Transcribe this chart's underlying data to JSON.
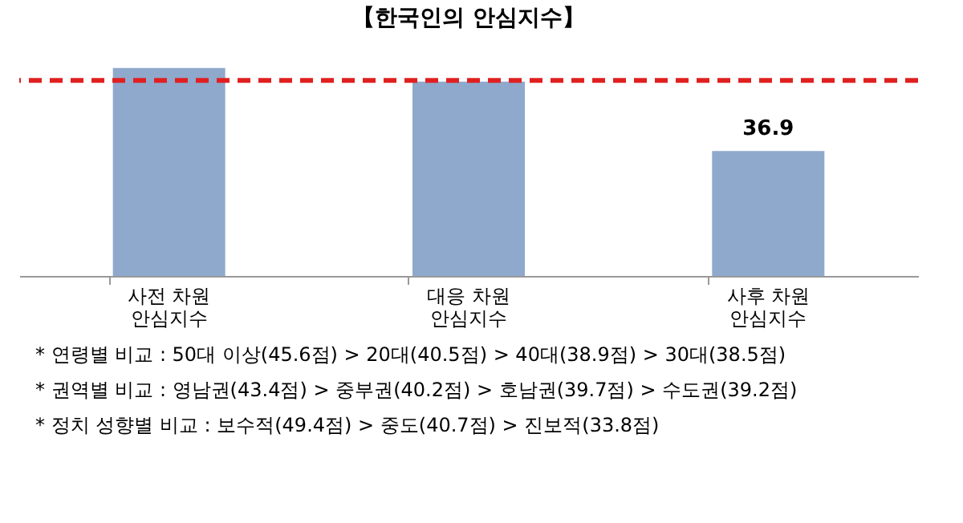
{
  "chart_data": {
    "type": "bar",
    "title": "【한국인의  안심지수】",
    "categories": [
      "사전 차원\n안심지수",
      "대응 차원\n안심지수",
      "사후 차원\n안심지수"
    ],
    "values": [
      61.4,
      57.4,
      36.9
    ],
    "value_labels": [
      null,
      null,
      "36.9"
    ],
    "color": "#8fa9cc",
    "grid": false,
    "ref_lines": [
      {
        "axis": "y",
        "value": 57.7,
        "color": "#e02020",
        "line_style": "dashed"
      }
    ],
    "annotations": [
      "* 연령별 비교 : 50대 이상(45.6점) > 20대(40.5점) > 40대(38.9점) > 30대(38.5점)",
      "* 권역별 비교 : 영남권(43.4점) > 중부권(40.2점) > 호남권(39.7점) > 수도권(39.2점)",
      "* 정치 성향별 비교 : 보수적(49.4점) > 중도(40.7점) > 진보적(33.8점)"
    ]
  }
}
